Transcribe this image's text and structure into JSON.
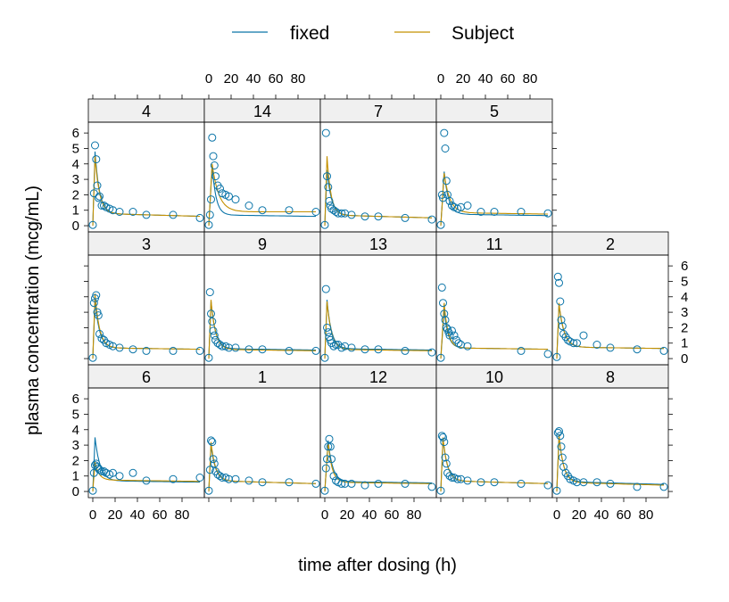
{
  "legend": {
    "position": "top",
    "items": [
      {
        "label": "fixed",
        "color": "#0a74a8"
      },
      {
        "label": "Subject",
        "color": "#c49000"
      }
    ]
  },
  "colors": {
    "fixed": "#0a74a8",
    "subject": "#c49000",
    "points": "#0a74a8",
    "strip": "#f0f0f0",
    "frame": "#000000"
  },
  "chart_data": {
    "type": "scatter",
    "xlabel": "time after dosing (h)",
    "ylabel": "plasma concentration (mcg/mL)",
    "xlim": [
      -4,
      100
    ],
    "ylim": [
      -0.4,
      6.7
    ],
    "x_ticks": [
      0,
      20,
      40,
      60,
      80
    ],
    "y_ticks": [
      0,
      1,
      2,
      3,
      4,
      5,
      6
    ],
    "x_tick_labels": [
      "0",
      "20",
      "40",
      "60",
      "80"
    ],
    "y_tick_labels": [
      "0",
      "1",
      "2",
      "3",
      "4",
      "5",
      "6"
    ],
    "layout": {
      "columns": 5,
      "rows": 3
    },
    "panels": [
      {
        "label": "6",
        "x": [
          0,
          1,
          2,
          3,
          4,
          5,
          6,
          8,
          10,
          12,
          15,
          18,
          24,
          36,
          48,
          72,
          96
        ],
        "y": [
          0.05,
          1.2,
          1.7,
          1.8,
          1.6,
          1.5,
          1.4,
          1.3,
          1.3,
          1.2,
          1.1,
          1.2,
          1.0,
          1.2,
          0.7,
          0.8,
          0.9
        ],
        "fixed": {
          "peak": 3.5,
          "tmax": 2,
          "fast": 4.5,
          "base": 0.7,
          "slope": 0.001
        },
        "subject": {
          "peak": 1.9,
          "tmax": 2,
          "fast": 3.5,
          "base": 0.75,
          "slope": 0.001
        }
      },
      {
        "label": "1",
        "x": [
          0,
          1,
          2,
          3,
          4,
          5,
          6,
          8,
          10,
          12,
          15,
          18,
          24,
          36,
          48,
          72,
          96
        ],
        "y": [
          0.05,
          1.4,
          3.3,
          3.2,
          2.1,
          1.8,
          1.3,
          1.1,
          1.0,
          0.9,
          0.9,
          0.8,
          0.8,
          0.7,
          0.6,
          0.6,
          0.5
        ],
        "fixed": {
          "peak": 3.0,
          "tmax": 2,
          "fast": 4,
          "base": 0.7,
          "slope": 0.002
        },
        "subject": {
          "peak": 3.2,
          "tmax": 2,
          "fast": 4,
          "base": 0.7,
          "slope": 0.002
        }
      },
      {
        "label": "12",
        "x": [
          0,
          1,
          2,
          3,
          4,
          5,
          6,
          8,
          10,
          12,
          15,
          18,
          24,
          36,
          48,
          72,
          96
        ],
        "y": [
          0.05,
          1.5,
          2.1,
          2.9,
          3.4,
          2.9,
          2.1,
          1.0,
          0.7,
          0.6,
          0.5,
          0.5,
          0.5,
          0.4,
          0.5,
          0.5,
          0.3
        ],
        "fixed": {
          "peak": 3.3,
          "tmax": 3,
          "fast": 4,
          "base": 0.65,
          "slope": 0.001
        },
        "subject": {
          "peak": 3.2,
          "tmax": 3,
          "fast": 3.5,
          "base": 0.6,
          "slope": 0.001
        }
      },
      {
        "label": "10",
        "x": [
          0,
          1,
          2,
          3,
          4,
          5,
          6,
          8,
          10,
          12,
          15,
          18,
          24,
          36,
          48,
          72,
          96
        ],
        "y": [
          0.05,
          3.6,
          3.5,
          3.2,
          2.2,
          1.8,
          1.2,
          1.0,
          0.9,
          0.9,
          0.8,
          0.8,
          0.7,
          0.6,
          0.6,
          0.5,
          0.4
        ],
        "fixed": {
          "peak": 3.4,
          "tmax": 2,
          "fast": 4,
          "base": 0.7,
          "slope": 0.002
        },
        "subject": {
          "peak": 3.5,
          "tmax": 2,
          "fast": 4,
          "base": 0.7,
          "slope": 0.002
        }
      },
      {
        "label": "8",
        "x": [
          0,
          1,
          2,
          3,
          4,
          5,
          6,
          8,
          10,
          12,
          15,
          18,
          24,
          36,
          48,
          72,
          96
        ],
        "y": [
          0.05,
          3.8,
          3.9,
          3.6,
          2.9,
          2.2,
          1.6,
          1.2,
          1.0,
          0.8,
          0.7,
          0.6,
          0.6,
          0.6,
          0.5,
          0.3,
          0.3
        ],
        "fixed": {
          "peak": 3.6,
          "tmax": 2,
          "fast": 4,
          "base": 0.65,
          "slope": 0.002
        },
        "subject": {
          "peak": 3.7,
          "tmax": 2,
          "fast": 4,
          "base": 0.6,
          "slope": 0.002
        }
      },
      {
        "label": "3",
        "x": [
          0,
          1,
          2,
          3,
          4,
          5,
          6,
          8,
          10,
          12,
          15,
          18,
          24,
          36,
          48,
          72,
          96
        ],
        "y": [
          0.05,
          3.6,
          3.9,
          4.1,
          3.0,
          2.8,
          1.6,
          1.3,
          1.2,
          1.0,
          0.9,
          0.8,
          0.7,
          0.6,
          0.5,
          0.5,
          0.5
        ],
        "fixed": {
          "peak": 3.8,
          "tmax": 2,
          "fast": 4,
          "base": 0.7,
          "slope": 0.001
        },
        "subject": {
          "peak": 4.2,
          "tmax": 2,
          "fast": 4,
          "base": 0.7,
          "slope": 0.001
        }
      },
      {
        "label": "9",
        "x": [
          0,
          1,
          2,
          3,
          4,
          5,
          6,
          8,
          10,
          12,
          15,
          18,
          24,
          36,
          48,
          72,
          96
        ],
        "y": [
          0.05,
          4.3,
          2.9,
          2.4,
          1.8,
          1.5,
          1.2,
          1.0,
          0.9,
          0.8,
          0.8,
          0.7,
          0.7,
          0.6,
          0.6,
          0.5,
          0.5
        ],
        "fixed": {
          "peak": 3.7,
          "tmax": 2,
          "fast": 4,
          "base": 0.65,
          "slope": 0.001
        },
        "subject": {
          "peak": 3.8,
          "tmax": 2,
          "fast": 4,
          "base": 0.6,
          "slope": 0.001
        }
      },
      {
        "label": "13",
        "x": [
          0,
          1,
          2,
          3,
          4,
          5,
          6,
          8,
          10,
          12,
          15,
          18,
          24,
          36,
          48,
          72,
          96
        ],
        "y": [
          0.05,
          4.5,
          2.0,
          1.7,
          1.4,
          1.2,
          1.0,
          0.8,
          0.9,
          0.9,
          0.7,
          0.8,
          0.7,
          0.6,
          0.6,
          0.5,
          0.4
        ],
        "fixed": {
          "peak": 3.8,
          "tmax": 2,
          "fast": 4,
          "base": 0.65,
          "slope": 0.001
        },
        "subject": {
          "peak": 3.7,
          "tmax": 2,
          "fast": 4,
          "base": 0.6,
          "slope": 0.001
        }
      },
      {
        "label": "11",
        "x": [
          0,
          1,
          2,
          3,
          4,
          5,
          6,
          7,
          8,
          10,
          12,
          14,
          16,
          18,
          24,
          72,
          96
        ],
        "y": [
          0.05,
          4.6,
          3.6,
          2.9,
          2.5,
          2.0,
          1.9,
          1.7,
          1.5,
          1.8,
          1.5,
          1.2,
          1.0,
          0.9,
          0.8,
          0.5,
          0.3
        ],
        "fixed": {
          "peak": 3.2,
          "tmax": 3,
          "fast": 3.5,
          "base": 0.7,
          "slope": 0.001
        },
        "subject": {
          "peak": 3.6,
          "tmax": 3,
          "fast": 3.5,
          "base": 0.7,
          "slope": 0.001
        }
      },
      {
        "label": "2",
        "x": [
          0,
          1,
          2,
          3,
          4,
          5,
          6,
          8,
          10,
          12,
          15,
          18,
          24,
          36,
          48,
          72,
          96
        ],
        "y": [
          0.1,
          5.3,
          4.9,
          3.7,
          2.5,
          2.1,
          1.6,
          1.4,
          1.2,
          1.1,
          1.0,
          1.0,
          1.5,
          0.9,
          0.7,
          0.6,
          0.5
        ],
        "fixed": {
          "peak": 3.5,
          "tmax": 2,
          "fast": 4.5,
          "base": 0.75,
          "slope": 0.001
        },
        "subject": {
          "peak": 3.6,
          "tmax": 2,
          "fast": 4.5,
          "base": 0.75,
          "slope": 0.001
        }
      },
      {
        "label": "4",
        "x": [
          0,
          1,
          2,
          3,
          4,
          5,
          6,
          8,
          10,
          12,
          15,
          18,
          24,
          36,
          48,
          72,
          96
        ],
        "y": [
          0.05,
          2.1,
          5.2,
          4.3,
          2.6,
          1.8,
          1.9,
          1.3,
          1.3,
          1.2,
          1.1,
          1.0,
          0.9,
          0.9,
          0.7,
          0.7,
          0.5
        ],
        "fixed": {
          "peak": 4.8,
          "tmax": 2,
          "fast": 4,
          "base": 0.8,
          "slope": 0.002
        },
        "subject": {
          "peak": 4.5,
          "tmax": 2,
          "fast": 4,
          "base": 0.8,
          "slope": 0.002
        }
      },
      {
        "label": "14",
        "x": [
          0,
          1,
          2,
          3,
          4,
          5,
          6,
          8,
          10,
          12,
          15,
          18,
          24,
          36,
          48,
          72,
          96
        ],
        "y": [
          0.05,
          0.7,
          1.7,
          5.7,
          4.5,
          3.9,
          3.2,
          2.6,
          2.4,
          2.1,
          2.0,
          1.9,
          1.7,
          1.3,
          1.0,
          1.0,
          0.9
        ],
        "fixed": {
          "peak": 3.9,
          "tmax": 3,
          "fast": 3.5,
          "base": 0.7,
          "slope": 0.001
        },
        "subject": {
          "peak": 4.0,
          "tmax": 3,
          "fast": 6.0,
          "base": 0.9,
          "slope": 0.0
        }
      },
      {
        "label": "7",
        "x": [
          0,
          1,
          2,
          3,
          4,
          5,
          6,
          8,
          10,
          12,
          15,
          18,
          24,
          36,
          48,
          72,
          96
        ],
        "y": [
          0.05,
          6.0,
          3.2,
          2.5,
          1.6,
          1.3,
          1.1,
          1.0,
          0.9,
          0.8,
          0.8,
          0.8,
          0.7,
          0.6,
          0.6,
          0.5,
          0.4
        ],
        "fixed": {
          "peak": 3.6,
          "tmax": 2,
          "fast": 4,
          "base": 0.7,
          "slope": 0.002
        },
        "subject": {
          "peak": 4.5,
          "tmax": 2,
          "fast": 3.5,
          "base": 0.7,
          "slope": 0.002
        }
      },
      {
        "label": "5",
        "x": [
          0,
          1,
          2,
          3,
          4,
          5,
          6,
          8,
          10,
          12,
          15,
          18,
          24,
          36,
          48,
          72,
          96
        ],
        "y": [
          0.05,
          2.0,
          1.8,
          6.0,
          5.0,
          2.9,
          2.0,
          1.6,
          1.3,
          1.2,
          1.1,
          1.2,
          1.3,
          0.9,
          0.9,
          0.9,
          0.8
        ],
        "fixed": {
          "peak": 3.5,
          "tmax": 3,
          "fast": 4,
          "base": 0.75,
          "slope": 0.001
        },
        "subject": {
          "peak": 3.4,
          "tmax": 3,
          "fast": 5,
          "base": 0.85,
          "slope": 0.001
        }
      }
    ]
  }
}
